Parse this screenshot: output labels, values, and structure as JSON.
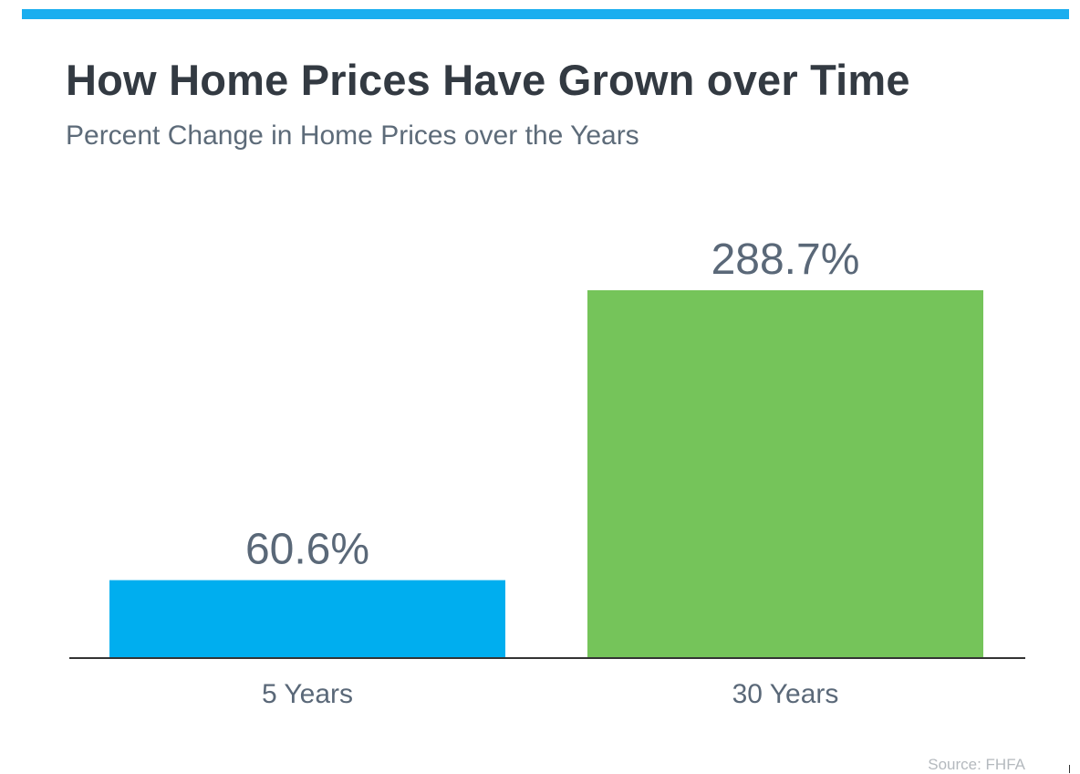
{
  "header": {
    "accent_color": "#1aaeef"
  },
  "chart_data": {
    "type": "bar",
    "title": "How Home Prices Have Grown over Time",
    "subtitle": "Percent Change in Home Prices over the Years",
    "categories": [
      "5 Years",
      "30 Years"
    ],
    "values": [
      60.6,
      288.7
    ],
    "value_labels": [
      "60.6%",
      "288.7%"
    ],
    "colors": [
      "#00aeef",
      "#75c45a"
    ],
    "ylim": [
      0,
      300
    ],
    "grid": false,
    "legend": "none",
    "source": "Source: FHFA"
  }
}
